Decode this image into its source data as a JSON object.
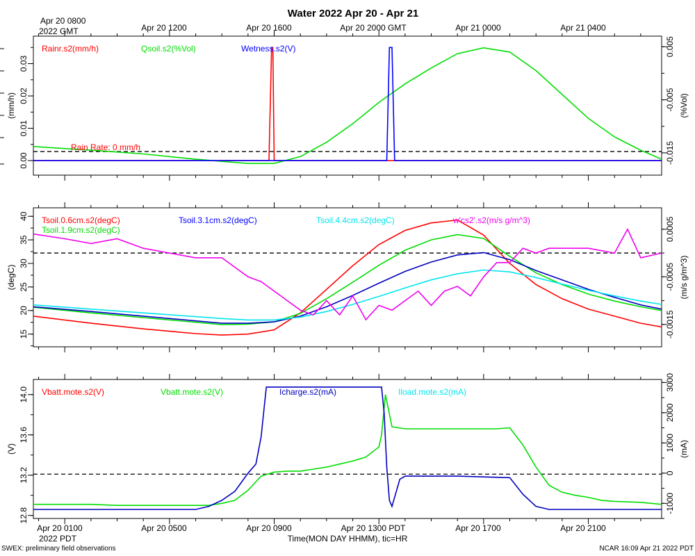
{
  "title": "Water 2022 Apr 20 - Apr 21",
  "top_axis": {
    "first_label": [
      "Apr 20 0800",
      "2022 GMT"
    ],
    "labels": [
      "Apr 20 1200",
      "Apr 20 1600",
      "Apr 20 2000 GMT",
      "Apr 21 0000",
      "Apr 21 0400"
    ]
  },
  "bottom_axis": {
    "labels": [
      "Apr 20 0100",
      "Apr 20 0500",
      "Apr 20 0900",
      "Apr 20 1300 PDT",
      "Apr 20 1700",
      "Apr 20 2100"
    ],
    "year_label": "2022 PDT",
    "xlabel": "Time(MON DAY HHMM), tic=HR"
  },
  "footer": {
    "left": "SWEX: preliminary field observations",
    "right": "NCAR 16:09 Apr 21 2022 PDT"
  },
  "colors": {
    "red": "#ff0000",
    "green": "#00dd00",
    "blue": "#0000ff",
    "navy": "#0000c0",
    "cyan": "#00e5ee",
    "magenta": "#ee00ee"
  },
  "chart_data": [
    {
      "type": "line",
      "panel": "water",
      "x_unit": "hours since Apr 20 0000 PDT",
      "xlim": [
        -0.2,
        23.8
      ],
      "left_axis": {
        "label": "(mm/h)",
        "ticks": [
          "0.00",
          "0.01",
          "0.02",
          "0.03"
        ],
        "ylim": [
          -0.0045,
          0.0385
        ]
      },
      "right_axis": {
        "label": "(%Vol)",
        "ticks": [
          "0.005",
          "-0.005",
          "-0.015"
        ],
        "ylim": [
          -0.0192,
          0.007
        ]
      },
      "legend": [
        "Rainr.s2(mm/h)",
        "Qsoil.s2(%Vol)",
        "Wetness.s2(V)"
      ],
      "annotation": "Rain Rate: 0 mm/h",
      "reference_line": 0.0028,
      "series": [
        {
          "name": "Rainr.s2(mm/h)",
          "color": "red",
          "axis": "left",
          "x": [
            -0.2,
            8.8,
            8.9,
            8.95,
            9.0,
            23.8
          ],
          "y": [
            0,
            0,
            0.035,
            0.035,
            0,
            0
          ]
        },
        {
          "name": "Qsoil.s2(%Vol)",
          "color": "green",
          "axis": "right",
          "x": [
            -0.2,
            2,
            4,
            6,
            7,
            8,
            9,
            10,
            11,
            12,
            13,
            14,
            15,
            16,
            17,
            18,
            19,
            20,
            21,
            22,
            23,
            23.8
          ],
          "y": [
            -0.0138,
            -0.0145,
            -0.0152,
            -0.0162,
            -0.0166,
            -0.017,
            -0.017,
            -0.0157,
            -0.013,
            -0.0095,
            -0.0055,
            -0.002,
            0.001,
            0.0037,
            0.0048,
            0.004,
            0.0005,
            -0.004,
            -0.0085,
            -0.012,
            -0.0145,
            -0.0162
          ]
        },
        {
          "name": "Wetness.s2(V)",
          "color": "blue",
          "axis": "left",
          "x": [
            -0.2,
            13.3,
            13.4,
            13.5,
            13.6,
            23.8
          ],
          "y": [
            0,
            0,
            0.035,
            0.035,
            0,
            0
          ]
        }
      ]
    },
    {
      "type": "line",
      "panel": "soil temperature",
      "x_unit": "hours since Apr 20 0000 PDT",
      "xlim": [
        -0.2,
        23.8
      ],
      "left_axis": {
        "label": "(degC)",
        "ticks": [
          "15",
          "20",
          "25",
          "30",
          "35",
          "40"
        ],
        "ylim": [
          12.3,
          41.8
        ]
      },
      "right_axis": {
        "label": "(m/s g/m^3)",
        "ticks": [
          "0.0005",
          "-0.0005",
          "-0.0015"
        ],
        "ylim": [
          -0.00197,
          0.00095
        ]
      },
      "legend": [
        "Tsoil.0.6cm.s2(degC)",
        "Tsoil.1.9cm.s2(degC)",
        "Tsoil.3.1cm.s2(degC)",
        "Tsoil.4.4cm.s2(degC)",
        "w'cs2'.s2(m/s g/m^3)"
      ],
      "reference_line": 0,
      "series": [
        {
          "name": "Tsoil.0.6cm.s2(degC)",
          "color": "red",
          "axis": "left",
          "x": [
            -0.2,
            2,
            4,
            6,
            7,
            8,
            9,
            10,
            11,
            12,
            13,
            14,
            15,
            16,
            17,
            18,
            19,
            20,
            21,
            22,
            23,
            23.8
          ],
          "y": [
            18.8,
            17.3,
            16.1,
            15.1,
            14.8,
            15.0,
            15.9,
            19.5,
            24.5,
            29.5,
            34.0,
            37.0,
            38.6,
            39.2,
            36.0,
            30.0,
            25.5,
            22.5,
            20.3,
            18.8,
            17.3,
            16.5
          ]
        },
        {
          "name": "Tsoil.1.9cm.s2(degC)",
          "color": "green",
          "axis": "left",
          "x": [
            -0.2,
            2,
            4,
            6,
            7,
            8,
            9,
            10,
            11,
            12,
            13,
            14,
            15,
            16,
            17,
            18,
            19,
            20,
            21,
            22,
            23,
            23.8
          ],
          "y": [
            20.7,
            19.5,
            18.5,
            17.5,
            17.0,
            17.1,
            17.6,
            19.4,
            22.5,
            26.0,
            29.6,
            32.8,
            35.0,
            36.1,
            35.3,
            31.5,
            28.0,
            25.5,
            23.5,
            22.0,
            20.8,
            20.0
          ]
        },
        {
          "name": "Tsoil.3.1cm.s2(degC)",
          "color": "navy",
          "axis": "left",
          "x": [
            -0.2,
            2,
            4,
            6,
            7,
            8,
            9,
            10,
            11,
            12,
            13,
            14,
            15,
            16,
            17,
            18,
            19,
            20,
            21,
            22,
            23,
            23.8
          ],
          "y": [
            20.8,
            19.8,
            18.8,
            17.8,
            17.3,
            17.3,
            17.6,
            18.8,
            20.8,
            23.2,
            25.8,
            28.3,
            30.3,
            31.8,
            32.3,
            30.8,
            28.5,
            26.5,
            24.5,
            22.8,
            21.2,
            20.3
          ]
        },
        {
          "name": "Tsoil.4.4cm.s2(degC)",
          "color": "cyan",
          "axis": "left",
          "x": [
            -0.2,
            2,
            4,
            6,
            7,
            8,
            9,
            10,
            11,
            12,
            13,
            14,
            15,
            16,
            17,
            18,
            19,
            20,
            21,
            22,
            23,
            23.8
          ],
          "y": [
            21.2,
            20.3,
            19.5,
            18.7,
            18.3,
            18.0,
            18.0,
            18.6,
            19.8,
            21.3,
            23.0,
            24.8,
            26.5,
            27.8,
            28.6,
            28.2,
            27.0,
            25.6,
            24.3,
            23.1,
            22.0,
            21.3
          ]
        },
        {
          "name": "w'cs2'.s2(m/s g/m^3)",
          "color": "magenta",
          "axis": "right",
          "x": [
            -0.2,
            1,
            2,
            3,
            4,
            5,
            6,
            7,
            7.5,
            8,
            8.5,
            9,
            9.5,
            10,
            10.5,
            11,
            11.5,
            12,
            12.5,
            13,
            13.5,
            14,
            14.5,
            15,
            15.5,
            16,
            16.5,
            17,
            17.5,
            18,
            18.5,
            19,
            19.5,
            20,
            21,
            22,
            22.5,
            23,
            23.8
          ],
          "y": [
            0.0004,
            0.0003,
            0.0002,
            0.0003,
            0.0001,
            0.0,
            -0.0001,
            -0.0001,
            -0.0003,
            -0.0005,
            -0.0006,
            -0.0008,
            -0.001,
            -0.0012,
            -0.0013,
            -0.001,
            -0.0013,
            -0.0009,
            -0.0014,
            -0.0011,
            -0.0012,
            -0.001,
            -0.0008,
            -0.0011,
            -0.0008,
            -0.0007,
            -0.0009,
            -0.0005,
            -0.0002,
            -0.0002,
            0.0001,
            0.0,
            0.0001,
            0.0001,
            0.0001,
            0.0,
            0.0005,
            -0.0001,
            0.0
          ]
        }
      ]
    },
    {
      "type": "line",
      "panel": "power",
      "x_unit": "hours since Apr 20 0000 PDT",
      "xlim": [
        -0.2,
        23.8
      ],
      "left_axis": {
        "label": "(V)",
        "ticks": [
          "12.8",
          "13.2",
          "13.6",
          "14.0"
        ],
        "ylim": [
          12.77,
          14.15
        ]
      },
      "right_axis": {
        "label": "(mA)",
        "ticks": [
          "3000",
          "2000",
          "1000",
          "0",
          "-1000"
        ],
        "ylim": [
          -1500,
          3100
        ]
      },
      "legend": [
        "Vbatt.mote.s2(V)",
        "Vbatt.mote.s2(V)",
        "Icharge.s2(mA)",
        "Iload.mote.s2(mA)"
      ],
      "reference_line": 13.21,
      "series": [
        {
          "name": "Vbatt.mote.s2(V) (green)",
          "color": "green",
          "axis": "left",
          "x": [
            -0.2,
            1,
            2,
            3,
            4,
            5,
            6,
            6.5,
            7,
            7.5,
            8,
            8.5,
            9,
            9.5,
            10,
            10.5,
            11,
            11.5,
            12,
            12.5,
            13,
            13.1,
            13.25,
            13.5,
            14,
            15,
            16,
            16.5,
            17,
            17.5,
            18,
            18.5,
            19,
            19.5,
            20,
            20.5,
            21,
            21.5,
            22,
            23,
            23.8
          ],
          "y": [
            12.91,
            12.91,
            12.91,
            12.9,
            12.9,
            12.9,
            12.9,
            12.9,
            12.92,
            12.95,
            13.05,
            13.19,
            13.23,
            13.24,
            13.24,
            13.26,
            13.28,
            13.31,
            13.34,
            13.38,
            13.48,
            13.6,
            14.0,
            13.68,
            13.66,
            13.66,
            13.66,
            13.66,
            13.66,
            13.66,
            13.67,
            13.5,
            13.28,
            13.1,
            13.03,
            13.0,
            12.98,
            12.95,
            12.94,
            12.93,
            12.91
          ]
        },
        {
          "name": "Icharge.s2(mA)",
          "color": "navy",
          "axis": "right",
          "x": [
            -0.2,
            5,
            6,
            6.5,
            7,
            7.5,
            8,
            8.3,
            8.5,
            8.7,
            9,
            10,
            11,
            12,
            13,
            13.1,
            13.2,
            13.3,
            13.4,
            13.5,
            13.8,
            14,
            16,
            18,
            18.5,
            19,
            19.5,
            20,
            21,
            22,
            23.8
          ],
          "y": [
            -1200,
            -1200,
            -1200,
            -1100,
            -900,
            -600,
            0,
            300,
            1200,
            2850,
            2850,
            2850,
            2850,
            2850,
            2850,
            2850,
            2000,
            200,
            -900,
            -1100,
            -200,
            -100,
            -100,
            -150,
            -700,
            -1100,
            -1200,
            -1200,
            -1200,
            -1200,
            -1200
          ]
        }
      ]
    }
  ]
}
